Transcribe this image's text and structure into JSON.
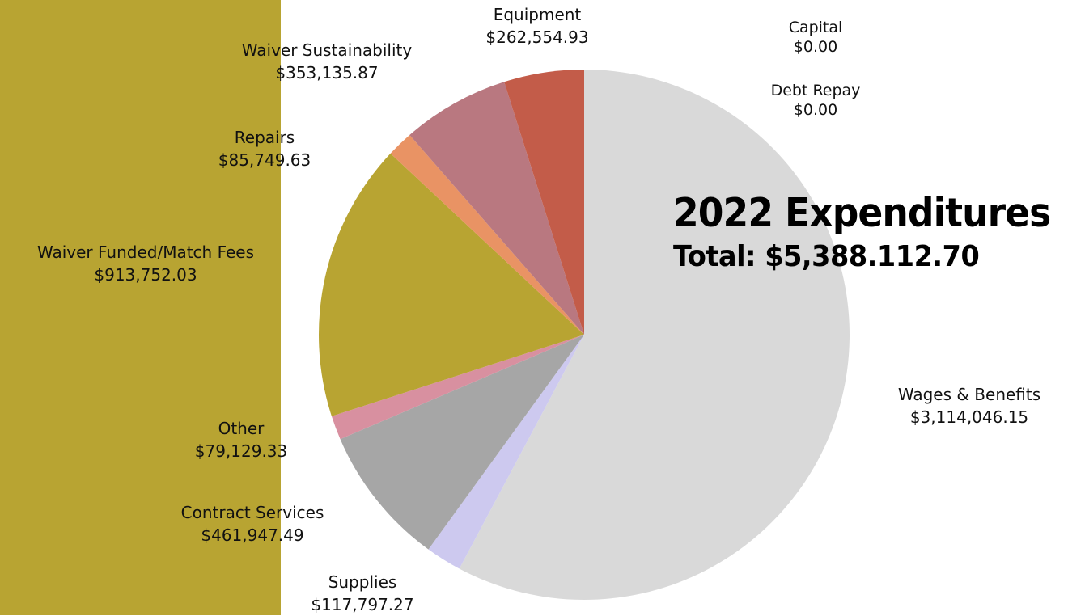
{
  "chart_data": {
    "type": "pie",
    "title": "2022 Expenditures",
    "subtitle": "Total: $5,388.112.70",
    "slices": [
      {
        "name": "Wages & Benefits",
        "value": 3114046.15,
        "value_label": "$3,114,046.15",
        "color": "#d9d9d9"
      },
      {
        "name": "Supplies",
        "value": 117797.27,
        "value_label": "$117,797.27",
        "color": "#cdc9ef"
      },
      {
        "name": "Contract Services",
        "value": 461947.49,
        "value_label": "$461,947.49",
        "color": "#a6a6a6"
      },
      {
        "name": "Other",
        "value": 79129.33,
        "value_label": "$79,129.33",
        "color": "#d890a0"
      },
      {
        "name": "Waiver Funded/Match Fees",
        "value": 913752.03,
        "value_label": "$913,752.03",
        "color": "#b8a432"
      },
      {
        "name": "Repairs",
        "value": 85749.63,
        "value_label": "$85,749.63",
        "color": "#e99364"
      },
      {
        "name": "Waiver Sustainability",
        "value": 353135.87,
        "value_label": "$353,135.87",
        "color": "#b97880"
      },
      {
        "name": "Equipment",
        "value": 262554.93,
        "value_label": "$262,554.93",
        "color": "#c35c49"
      },
      {
        "name": "Capital",
        "value": 0,
        "value_label": "$0.00",
        "color": "#8064a2"
      },
      {
        "name": "Debt Repay",
        "value": 0,
        "value_label": "$0.00",
        "color": "#4bacc6"
      }
    ],
    "start_angle": "12 o'clock",
    "direction": "clockwise",
    "legend": "none"
  },
  "background_band_color": "#b8a432"
}
